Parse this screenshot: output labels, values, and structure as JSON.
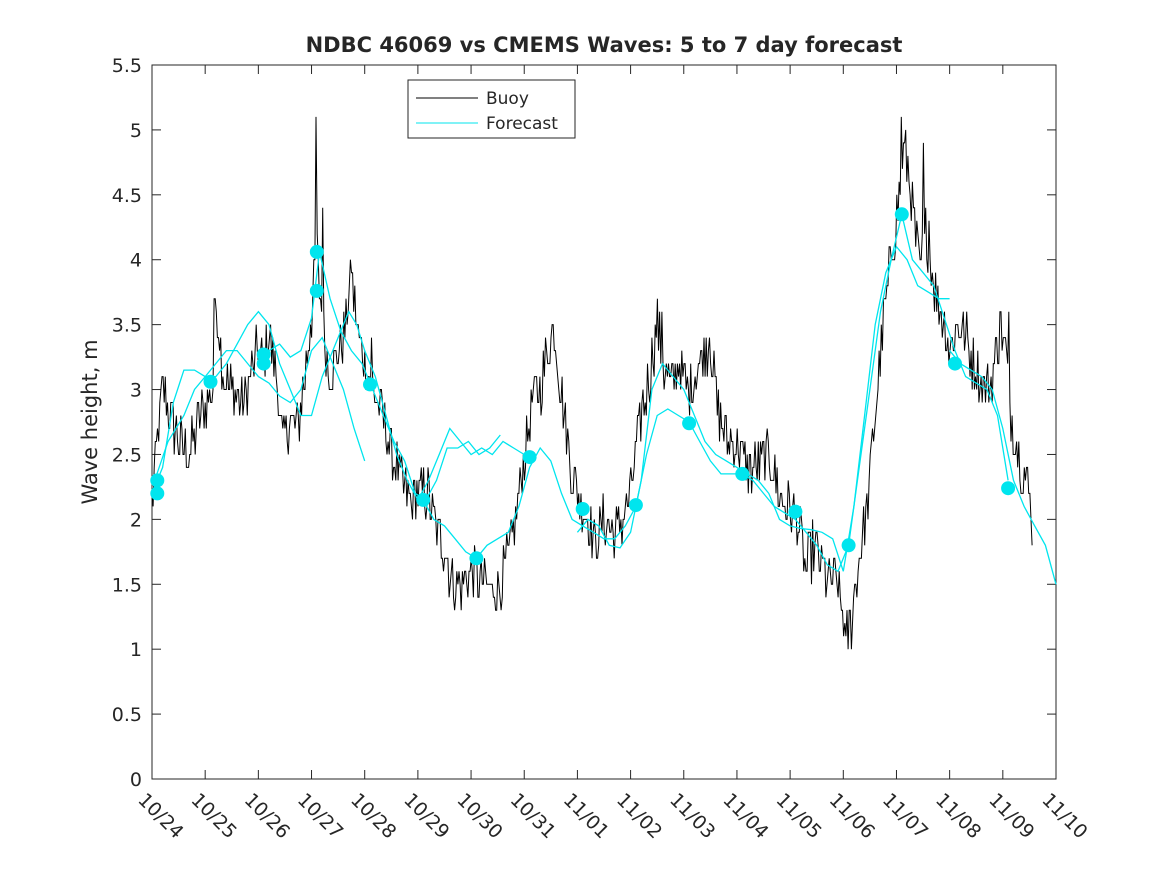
{
  "chart_data": {
    "type": "line",
    "title": "NDBC 46069 vs CMEMS Waves: 5 to 7 day forecast",
    "xlabel": "",
    "ylabel": "Wave height, m",
    "xlim": [
      0,
      17
    ],
    "ylim": [
      0,
      5.5
    ],
    "x_ticks": [
      0,
      1,
      2,
      3,
      4,
      5,
      6,
      7,
      8,
      9,
      10,
      11,
      12,
      13,
      14,
      15,
      16,
      17
    ],
    "x_tick_labels": [
      "10/24",
      "10/25",
      "10/26",
      "10/27",
      "10/28",
      "10/29",
      "10/30",
      "10/31",
      "11/01",
      "11/02",
      "11/03",
      "11/04",
      "11/05",
      "11/06",
      "11/07",
      "11/08",
      "11/09",
      "11/10"
    ],
    "y_ticks": [
      0,
      0.5,
      1,
      1.5,
      2,
      2.5,
      3,
      3.5,
      4,
      4.5,
      5,
      5.5
    ],
    "y_tick_labels": [
      "0",
      "0.5",
      "1",
      "1.5",
      "2",
      "2.5",
      "3",
      "3.5",
      "4",
      "4.5",
      "5",
      "5.5"
    ],
    "legend": {
      "position": "top-center",
      "entries": [
        "Buoy",
        "Forecast"
      ]
    },
    "colors": {
      "buoy": "#000000",
      "forecast": "#00e5ee",
      "axis": "#262626"
    },
    "buoy_keypoints": [
      [
        0,
        2.1
      ],
      [
        0.1,
        2.6
      ],
      [
        0.2,
        3.0
      ],
      [
        0.35,
        2.8
      ],
      [
        0.5,
        2.6
      ],
      [
        0.7,
        2.5
      ],
      [
        0.85,
        2.7
      ],
      [
        1.0,
        2.9
      ],
      [
        1.15,
        3.0
      ],
      [
        1.2,
        3.7
      ],
      [
        1.35,
        3.1
      ],
      [
        1.5,
        3.0
      ],
      [
        1.7,
        2.9
      ],
      [
        1.85,
        3.1
      ],
      [
        2.0,
        3.3
      ],
      [
        2.1,
        3.2
      ],
      [
        2.2,
        3.4
      ],
      [
        2.35,
        3.1
      ],
      [
        2.45,
        2.6
      ],
      [
        2.6,
        2.8
      ],
      [
        2.75,
        2.7
      ],
      [
        2.9,
        3.2
      ],
      [
        3.0,
        3.6
      ],
      [
        3.1,
        4.05
      ],
      [
        3.2,
        3.5
      ],
      [
        3.35,
        3.1
      ],
      [
        3.5,
        3.3
      ],
      [
        3.65,
        3.5
      ],
      [
        3.75,
        3.9
      ],
      [
        3.85,
        3.5
      ],
      [
        4.0,
        3.2
      ],
      [
        4.15,
        3.0
      ],
      [
        4.35,
        2.8
      ],
      [
        4.5,
        2.5
      ],
      [
        4.7,
        2.3
      ],
      [
        4.85,
        2.1
      ],
      [
        5.0,
        2.2
      ],
      [
        5.2,
        2.2
      ],
      [
        5.35,
        1.9
      ],
      [
        5.5,
        1.8
      ],
      [
        5.65,
        1.5
      ],
      [
        5.8,
        1.5
      ],
      [
        6.0,
        1.6
      ],
      [
        6.2,
        1.5
      ],
      [
        6.4,
        1.45
      ],
      [
        6.55,
        1.5
      ],
      [
        6.7,
        1.7
      ],
      [
        6.85,
        2.0
      ],
      [
        7.0,
        2.5
      ],
      [
        7.15,
        2.9
      ],
      [
        7.3,
        3.0
      ],
      [
        7.45,
        3.3
      ],
      [
        7.55,
        3.5
      ],
      [
        7.7,
        3.0
      ],
      [
        7.85,
        2.5
      ],
      [
        8.0,
        2.2
      ],
      [
        8.2,
        2.0
      ],
      [
        8.35,
        1.8
      ],
      [
        8.5,
        2.0
      ],
      [
        8.7,
        1.9
      ],
      [
        8.85,
        2.0
      ],
      [
        9.0,
        2.2
      ],
      [
        9.2,
        2.8
      ],
      [
        9.35,
        3.1
      ],
      [
        9.5,
        3.5
      ],
      [
        9.6,
        3.2
      ],
      [
        9.75,
        3.0
      ],
      [
        9.9,
        3.2
      ],
      [
        10.1,
        3.0
      ],
      [
        10.3,
        3.2
      ],
      [
        10.5,
        3.4
      ],
      [
        10.65,
        2.8
      ],
      [
        10.8,
        2.6
      ],
      [
        11.0,
        2.6
      ],
      [
        11.2,
        2.4
      ],
      [
        11.4,
        2.4
      ],
      [
        11.6,
        2.5
      ],
      [
        11.8,
        2.2
      ],
      [
        12.0,
        2.1
      ],
      [
        12.15,
        2.0
      ],
      [
        12.3,
        1.6
      ],
      [
        12.45,
        1.8
      ],
      [
        12.6,
        1.6
      ],
      [
        12.8,
        1.5
      ],
      [
        12.9,
        1.5
      ],
      [
        13.05,
        1.1
      ],
      [
        13.15,
        1.2
      ],
      [
        13.3,
        1.7
      ],
      [
        13.45,
        2.1
      ],
      [
        13.6,
        2.8
      ],
      [
        13.75,
        3.5
      ],
      [
        13.9,
        4.0
      ],
      [
        14.05,
        4.5
      ],
      [
        14.15,
        4.9
      ],
      [
        14.25,
        4.6
      ],
      [
        14.35,
        4.2
      ],
      [
        14.45,
        3.9
      ],
      [
        14.55,
        4.2
      ],
      [
        14.65,
        4.0
      ],
      [
        14.75,
        3.7
      ],
      [
        14.85,
        3.6
      ],
      [
        15.0,
        3.3
      ],
      [
        15.15,
        3.5
      ],
      [
        15.3,
        3.4
      ],
      [
        15.45,
        3.2
      ],
      [
        15.55,
        3.1
      ],
      [
        15.65,
        3.0
      ],
      [
        15.75,
        3.05
      ],
      [
        15.85,
        3.2
      ],
      [
        15.95,
        3.5
      ],
      [
        16.05,
        3.3
      ],
      [
        16.15,
        2.8
      ],
      [
        16.3,
        2.5
      ],
      [
        16.45,
        2.3
      ],
      [
        16.55,
        2.0
      ]
    ],
    "buoy_spikes": [
      [
        1.17,
        3.7
      ],
      [
        3.08,
        5.1
      ],
      [
        3.2,
        4.4
      ],
      [
        3.75,
        3.9
      ],
      [
        4.12,
        3.4
      ],
      [
        7.55,
        3.5
      ],
      [
        9.58,
        3.6
      ],
      [
        10.48,
        3.4
      ],
      [
        14.1,
        5.1
      ],
      [
        14.5,
        4.9
      ],
      [
        14.62,
        4.3
      ],
      [
        15.95,
        3.6
      ],
      [
        16.12,
        3.6
      ],
      [
        13.05,
        1.1
      ]
    ],
    "forecast_lines": [
      [
        [
          0,
          2.2
        ],
        [
          0.2,
          2.4
        ],
        [
          0.4,
          2.9
        ],
        [
          0.6,
          3.15
        ],
        [
          0.8,
          3.15
        ],
        [
          1.0,
          3.1
        ],
        [
          1.2,
          3.2
        ],
        [
          1.4,
          3.3
        ],
        [
          1.6,
          3.3
        ],
        [
          1.8,
          3.2
        ],
        [
          2.0,
          3.1
        ],
        [
          2.2,
          3.05
        ],
        [
          2.4,
          2.95
        ],
        [
          2.6,
          2.9
        ],
        [
          2.8,
          3.0
        ],
        [
          3.0,
          3.3
        ],
        [
          3.2,
          3.4
        ],
        [
          3.4,
          3.2
        ],
        [
          3.6,
          3.0
        ],
        [
          3.8,
          2.7
        ],
        [
          4.0,
          2.45
        ]
      ],
      [
        [
          0.05,
          2.3
        ],
        [
          0.3,
          2.6
        ],
        [
          0.6,
          2.8
        ],
        [
          0.8,
          3.0
        ],
        [
          1.0,
          3.1
        ],
        [
          1.2,
          3.1
        ],
        [
          1.4,
          3.2
        ],
        [
          1.6,
          3.35
        ],
        [
          1.8,
          3.5
        ],
        [
          2.0,
          3.6
        ],
        [
          2.2,
          3.5
        ],
        [
          2.4,
          3.2
        ],
        [
          2.6,
          3.0
        ],
        [
          2.8,
          2.8
        ],
        [
          3.0,
          2.8
        ],
        [
          3.2,
          3.1
        ],
        [
          3.4,
          3.3
        ],
        [
          3.6,
          3.5
        ],
        [
          3.7,
          3.6
        ],
        [
          3.85,
          3.5
        ],
        [
          4.0,
          3.3
        ],
        [
          4.2,
          3.1
        ],
        [
          4.4,
          2.8
        ],
        [
          4.6,
          2.5
        ],
        [
          4.8,
          2.3
        ],
        [
          5.0,
          2.15
        ],
        [
          5.2,
          2.3
        ],
        [
          5.4,
          2.5
        ],
        [
          5.6,
          2.7
        ],
        [
          5.8,
          2.6
        ],
        [
          6.0,
          2.5
        ],
        [
          6.2,
          2.55
        ],
        [
          6.4,
          2.5
        ],
        [
          6.6,
          2.6
        ],
        [
          6.8,
          2.55
        ],
        [
          7.0,
          2.5
        ],
        [
          7.2,
          2.45
        ]
      ],
      [
        [
          2.0,
          3.2
        ],
        [
          2.2,
          3.3
        ],
        [
          2.4,
          3.35
        ],
        [
          2.6,
          3.25
        ],
        [
          2.8,
          3.3
        ],
        [
          3.0,
          3.55
        ],
        [
          3.15,
          4.06
        ],
        [
          3.35,
          3.7
        ],
        [
          3.55,
          3.45
        ],
        [
          3.75,
          3.3
        ],
        [
          3.95,
          3.2
        ],
        [
          4.15,
          3.0
        ],
        [
          4.35,
          2.8
        ],
        [
          4.55,
          2.6
        ],
        [
          4.75,
          2.45
        ],
        [
          4.95,
          2.2
        ],
        [
          5.15,
          2.15
        ],
        [
          5.35,
          2.3
        ],
        [
          5.55,
          2.55
        ],
        [
          5.75,
          2.55
        ],
        [
          5.95,
          2.6
        ],
        [
          6.15,
          2.5
        ],
        [
          6.35,
          2.55
        ],
        [
          6.55,
          2.65
        ]
      ],
      [
        [
          5.1,
          2.15
        ],
        [
          5.3,
          2.0
        ],
        [
          5.5,
          1.95
        ],
        [
          5.7,
          1.85
        ],
        [
          5.9,
          1.75
        ],
        [
          6.1,
          1.7
        ],
        [
          6.3,
          1.8
        ],
        [
          6.5,
          1.85
        ],
        [
          6.7,
          1.9
        ],
        [
          6.9,
          2.1
        ],
        [
          7.1,
          2.4
        ],
        [
          7.3,
          2.55
        ],
        [
          7.5,
          2.45
        ],
        [
          7.7,
          2.2
        ],
        [
          7.9,
          2.0
        ],
        [
          8.1,
          1.95
        ],
        [
          8.3,
          1.9
        ],
        [
          8.5,
          1.85
        ],
        [
          8.7,
          1.85
        ],
        [
          8.9,
          1.95
        ],
        [
          9.1,
          2.1
        ],
        [
          9.3,
          2.5
        ],
        [
          9.5,
          2.8
        ],
        [
          9.7,
          2.85
        ],
        [
          9.9,
          2.8
        ],
        [
          10.1,
          2.75
        ],
        [
          10.3,
          2.6
        ],
        [
          10.5,
          2.45
        ],
        [
          10.7,
          2.35
        ],
        [
          10.9,
          2.35
        ],
        [
          11.1,
          2.35
        ],
        [
          11.3,
          2.3
        ],
        [
          11.5,
          2.2
        ],
        [
          11.7,
          2.1
        ],
        [
          11.9,
          2.05
        ],
        [
          12.1,
          2.0
        ],
        [
          12.3,
          1.9
        ],
        [
          12.5,
          1.8
        ],
        [
          12.7,
          1.65
        ],
        [
          12.9,
          1.6
        ],
        [
          13.1,
          1.8
        ],
        [
          13.3,
          2.4
        ],
        [
          13.5,
          3.0
        ],
        [
          13.7,
          3.6
        ],
        [
          13.9,
          4.0
        ],
        [
          14.1,
          4.35
        ],
        [
          14.3,
          4.0
        ],
        [
          14.5,
          3.9
        ],
        [
          14.7,
          3.8
        ],
        [
          14.9,
          3.55
        ],
        [
          15.1,
          3.3
        ],
        [
          15.3,
          3.1
        ],
        [
          15.5,
          3.05
        ],
        [
          15.7,
          3.0
        ],
        [
          15.9,
          2.8
        ],
        [
          16.1,
          2.3
        ]
      ],
      [
        [
          8.0,
          1.9
        ],
        [
          8.2,
          2.0
        ],
        [
          8.4,
          1.95
        ],
        [
          8.6,
          1.8
        ],
        [
          8.8,
          1.78
        ],
        [
          9.0,
          1.9
        ],
        [
          9.2,
          2.3
        ],
        [
          9.4,
          3.0
        ],
        [
          9.6,
          3.2
        ],
        [
          9.8,
          3.1
        ],
        [
          10.0,
          3.0
        ],
        [
          10.2,
          2.8
        ],
        [
          10.4,
          2.6
        ],
        [
          10.6,
          2.5
        ],
        [
          10.8,
          2.45
        ],
        [
          11.0,
          2.4
        ],
        [
          11.2,
          2.35
        ],
        [
          11.4,
          2.3
        ],
        [
          11.6,
          2.2
        ],
        [
          11.8,
          2.0
        ],
        [
          12.0,
          1.95
        ],
        [
          12.2,
          1.93
        ],
        [
          12.4,
          1.92
        ],
        [
          12.6,
          1.9
        ],
        [
          12.8,
          1.85
        ],
        [
          13.0,
          1.6
        ],
        [
          13.2,
          2.1
        ],
        [
          13.4,
          2.8
        ],
        [
          13.6,
          3.5
        ],
        [
          13.8,
          3.9
        ],
        [
          14.0,
          4.1
        ],
        [
          14.2,
          4.0
        ],
        [
          14.4,
          3.8
        ],
        [
          14.6,
          3.75
        ],
        [
          14.8,
          3.7
        ],
        [
          15.0,
          3.7
        ]
      ],
      [
        [
          15.0,
          3.3
        ],
        [
          15.2,
          3.2
        ],
        [
          15.4,
          3.15
        ],
        [
          15.6,
          3.1
        ],
        [
          15.8,
          3.0
        ],
        [
          16.0,
          2.7
        ],
        [
          16.2,
          2.3
        ],
        [
          16.4,
          2.1
        ],
        [
          16.6,
          1.95
        ],
        [
          16.8,
          1.8
        ],
        [
          17.0,
          1.5
        ]
      ]
    ],
    "forecast_markers": [
      [
        0.1,
        2.3
      ],
      [
        0.1,
        2.2
      ],
      [
        1.1,
        3.06
      ],
      [
        2.1,
        3.27
      ],
      [
        2.1,
        3.2
      ],
      [
        3.1,
        3.76
      ],
      [
        3.1,
        4.06
      ],
      [
        4.1,
        3.04
      ],
      [
        5.1,
        2.15
      ],
      [
        6.1,
        1.7
      ],
      [
        7.1,
        2.48
      ],
      [
        8.1,
        2.08
      ],
      [
        9.1,
        2.11
      ],
      [
        10.1,
        2.74
      ],
      [
        11.1,
        2.35
      ],
      [
        12.1,
        2.06
      ],
      [
        13.1,
        1.8
      ],
      [
        14.1,
        4.35
      ],
      [
        15.1,
        3.2
      ],
      [
        16.1,
        2.24
      ]
    ]
  }
}
